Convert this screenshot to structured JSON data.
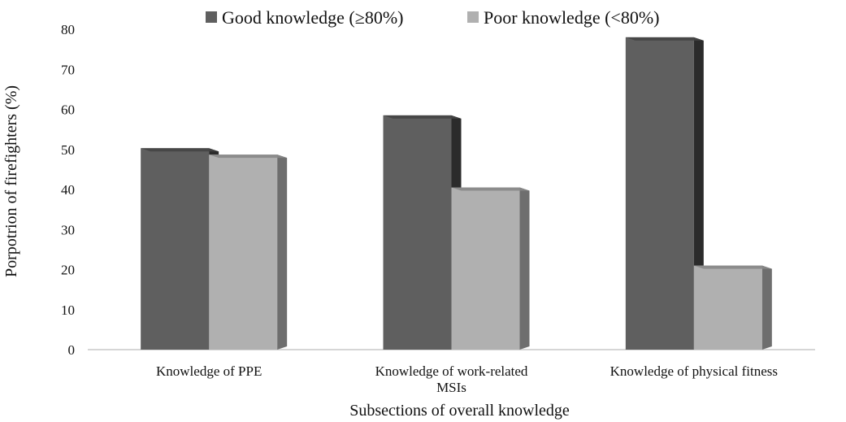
{
  "chart_data": {
    "type": "bar",
    "style": "3d-clustered",
    "categories": [
      [
        "Knowledge of PPE"
      ],
      [
        "Knowledge of work-related",
        "MSIs"
      ],
      [
        "Knowledge of physical fitness"
      ]
    ],
    "series": [
      {
        "name": "Good knowledge  (≥80%)",
        "values": [
          50.3,
          58.5,
          78.0
        ],
        "color": "#5f5f5f",
        "side_color": "#2b2b2b",
        "top_color": "#454545"
      },
      {
        "name": "Poor knowledge (<80%)",
        "values": [
          48.7,
          40.5,
          21.0
        ],
        "color": "#b0b0b0",
        "side_color": "#6e6e6e",
        "top_color": "#888888"
      }
    ],
    "xlabel": "Subsections of overall knowledge",
    "ylabel": "Porpotrion of firefighters  (%)",
    "ylim": [
      0,
      80
    ],
    "yticks": [
      0,
      10,
      20,
      30,
      40,
      50,
      60,
      70,
      80
    ],
    "grid": false,
    "legend_position": "top"
  }
}
